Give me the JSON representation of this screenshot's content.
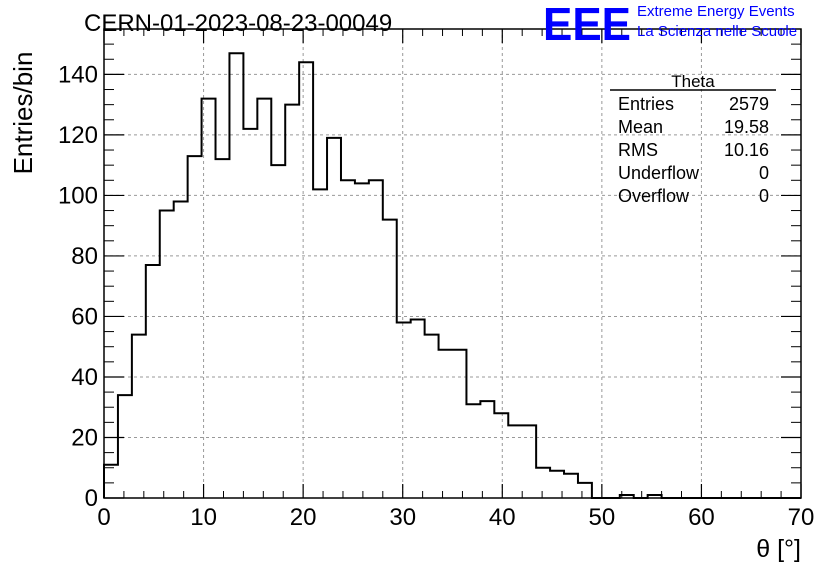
{
  "header": {
    "run_title": "CERN-01-2023-08-23-00049",
    "logo_mark": "EEE",
    "logo_line1": "Extreme Energy Events",
    "logo_line2": "La Scienza nelle Scuole",
    "logo_color": "#0000ff"
  },
  "stats_box": {
    "title": "Theta",
    "rows": [
      {
        "label": "Entries",
        "value": "2579"
      },
      {
        "label": "Mean",
        "value": "19.58"
      },
      {
        "label": "RMS",
        "value": "10.16"
      },
      {
        "label": "Underflow",
        "value": "0"
      },
      {
        "label": "Overflow",
        "value": "0"
      }
    ]
  },
  "chart_data": {
    "type": "bar",
    "style": "step-histogram",
    "title": "CERN-01-2023-08-23-00049",
    "xlabel": "θ [°]",
    "ylabel": "Entries/bin",
    "xlim": [
      0,
      70
    ],
    "ylim": [
      0,
      155
    ],
    "grid": true,
    "bin_width": 1.4,
    "x_ticks": [
      0,
      10,
      20,
      30,
      40,
      50,
      60,
      70
    ],
    "y_ticks": [
      0,
      20,
      40,
      60,
      80,
      100,
      120,
      140
    ],
    "bin_edges_start": 0,
    "values": [
      11,
      34,
      54,
      77,
      95,
      98,
      113,
      132,
      112,
      147,
      122,
      132,
      110,
      130,
      144,
      102,
      119,
      105,
      104,
      105,
      92,
      58,
      59,
      54,
      49,
      49,
      31,
      32,
      28,
      24,
      24,
      10,
      9,
      8,
      5,
      0,
      0,
      1,
      0,
      1,
      0,
      0,
      0,
      0,
      0,
      0,
      0,
      0,
      0,
      0
    ],
    "line_color": "#000000"
  }
}
